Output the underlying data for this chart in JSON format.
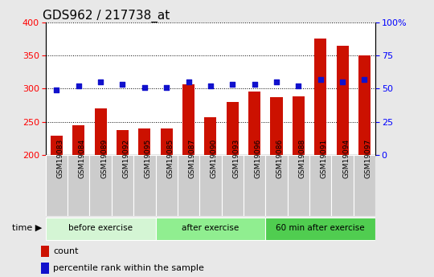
{
  "title": "GDS962 / 217738_at",
  "samples": [
    "GSM19083",
    "GSM19084",
    "GSM19089",
    "GSM19092",
    "GSM19095",
    "GSM19085",
    "GSM19087",
    "GSM19090",
    "GSM19093",
    "GSM19096",
    "GSM19086",
    "GSM19088",
    "GSM19091",
    "GSM19094",
    "GSM19097"
  ],
  "counts_all": [
    229,
    245,
    270,
    238,
    240,
    240,
    307,
    257,
    280,
    296,
    287,
    289,
    375,
    365,
    350
  ],
  "percentile": [
    49,
    52,
    55,
    53,
    51,
    51,
    55,
    52,
    53,
    53,
    55,
    52,
    57,
    55,
    57
  ],
  "groups": [
    {
      "label": "before exercise",
      "start": 0,
      "end": 5,
      "color": "#d4f5d4"
    },
    {
      "label": "after exercise",
      "start": 5,
      "end": 10,
      "color": "#90ee90"
    },
    {
      "label": "60 min after exercise",
      "start": 10,
      "end": 15,
      "color": "#50cd50"
    }
  ],
  "bar_color": "#cc1100",
  "dot_color": "#1111cc",
  "ylim_left": [
    200,
    400
  ],
  "ylim_right": [
    0,
    100
  ],
  "yticks_left": [
    200,
    250,
    300,
    350,
    400
  ],
  "yticks_right": [
    0,
    25,
    50,
    75,
    100
  ],
  "tick_bg_color": "#cccccc",
  "plot_bg": "#ffffff",
  "fig_bg": "#e8e8e8",
  "title_fontsize": 11,
  "tick_fontsize": 7,
  "bar_width": 0.55
}
